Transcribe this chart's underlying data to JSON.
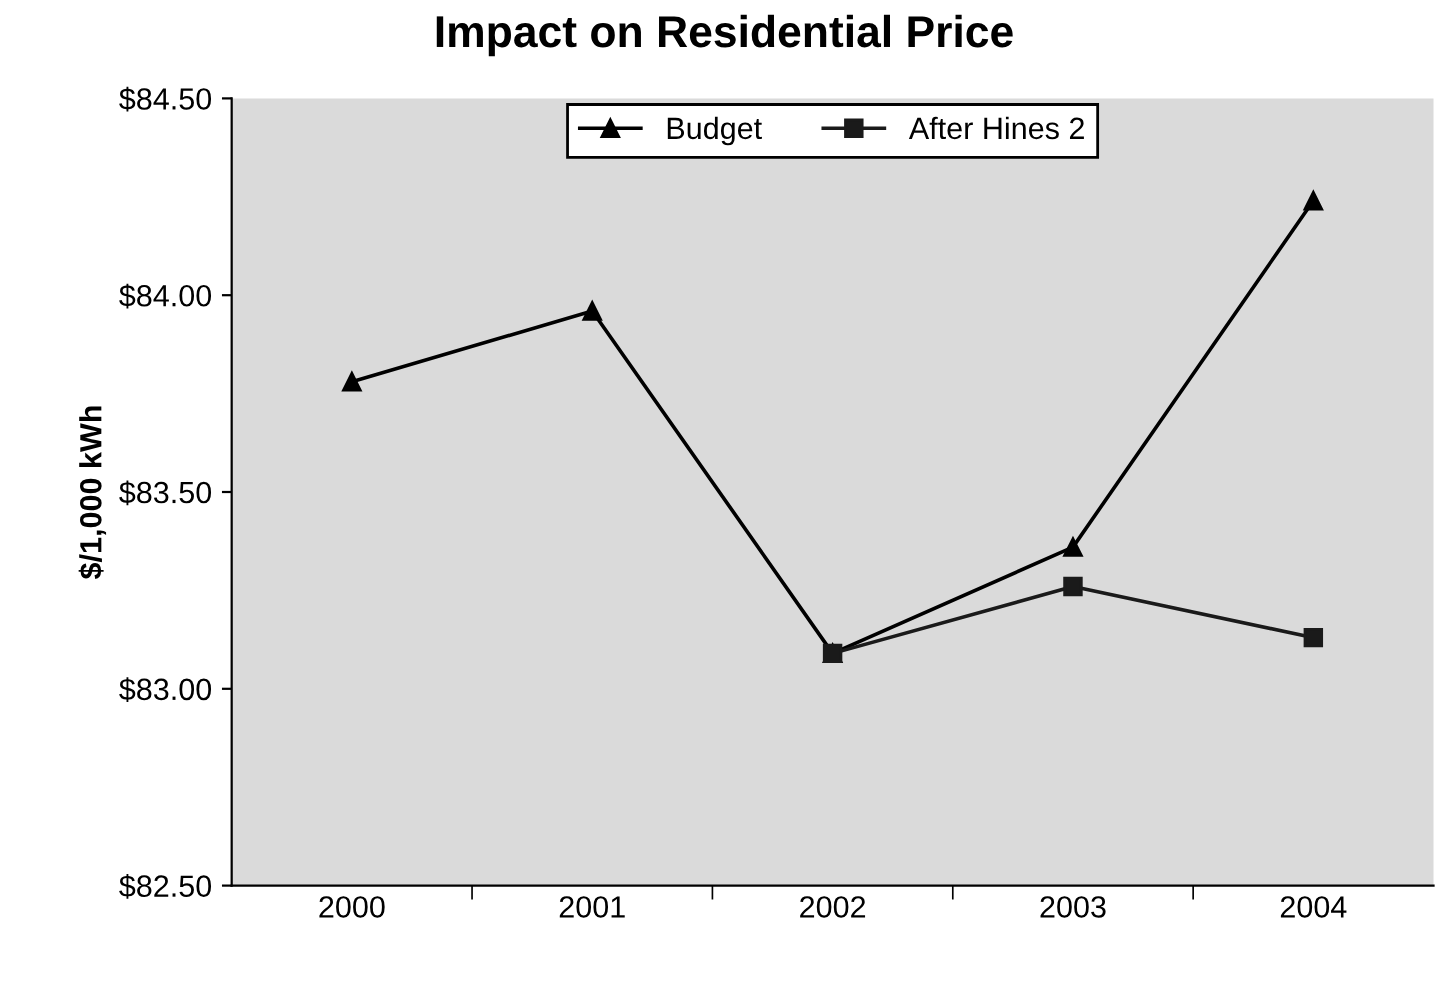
{
  "chart_data": {
    "type": "line",
    "title": "Impact on Residential Price",
    "ylabel": "$/1,000 kWh",
    "categories": [
      "2000",
      "2001",
      "2002",
      "2003",
      "2004"
    ],
    "series": [
      {
        "name": "Budget",
        "color": "#000000",
        "marker": "triangle",
        "values": [
          83.78,
          83.96,
          83.09,
          83.36,
          84.24
        ]
      },
      {
        "name": "After Hines 2",
        "color": "#1a1a1a",
        "marker": "square",
        "values": [
          null,
          null,
          83.09,
          83.26,
          83.13
        ]
      }
    ],
    "ylim": [
      82.5,
      84.5
    ],
    "yticks": [
      {
        "value": 82.5,
        "label": "$82.50"
      },
      {
        "value": 83.0,
        "label": "$83.00"
      },
      {
        "value": 83.5,
        "label": "$83.50"
      },
      {
        "value": 84.0,
        "label": "$84.00"
      },
      {
        "value": 84.5,
        "label": "$84.50"
      }
    ],
    "grid": false,
    "legend": "top"
  }
}
